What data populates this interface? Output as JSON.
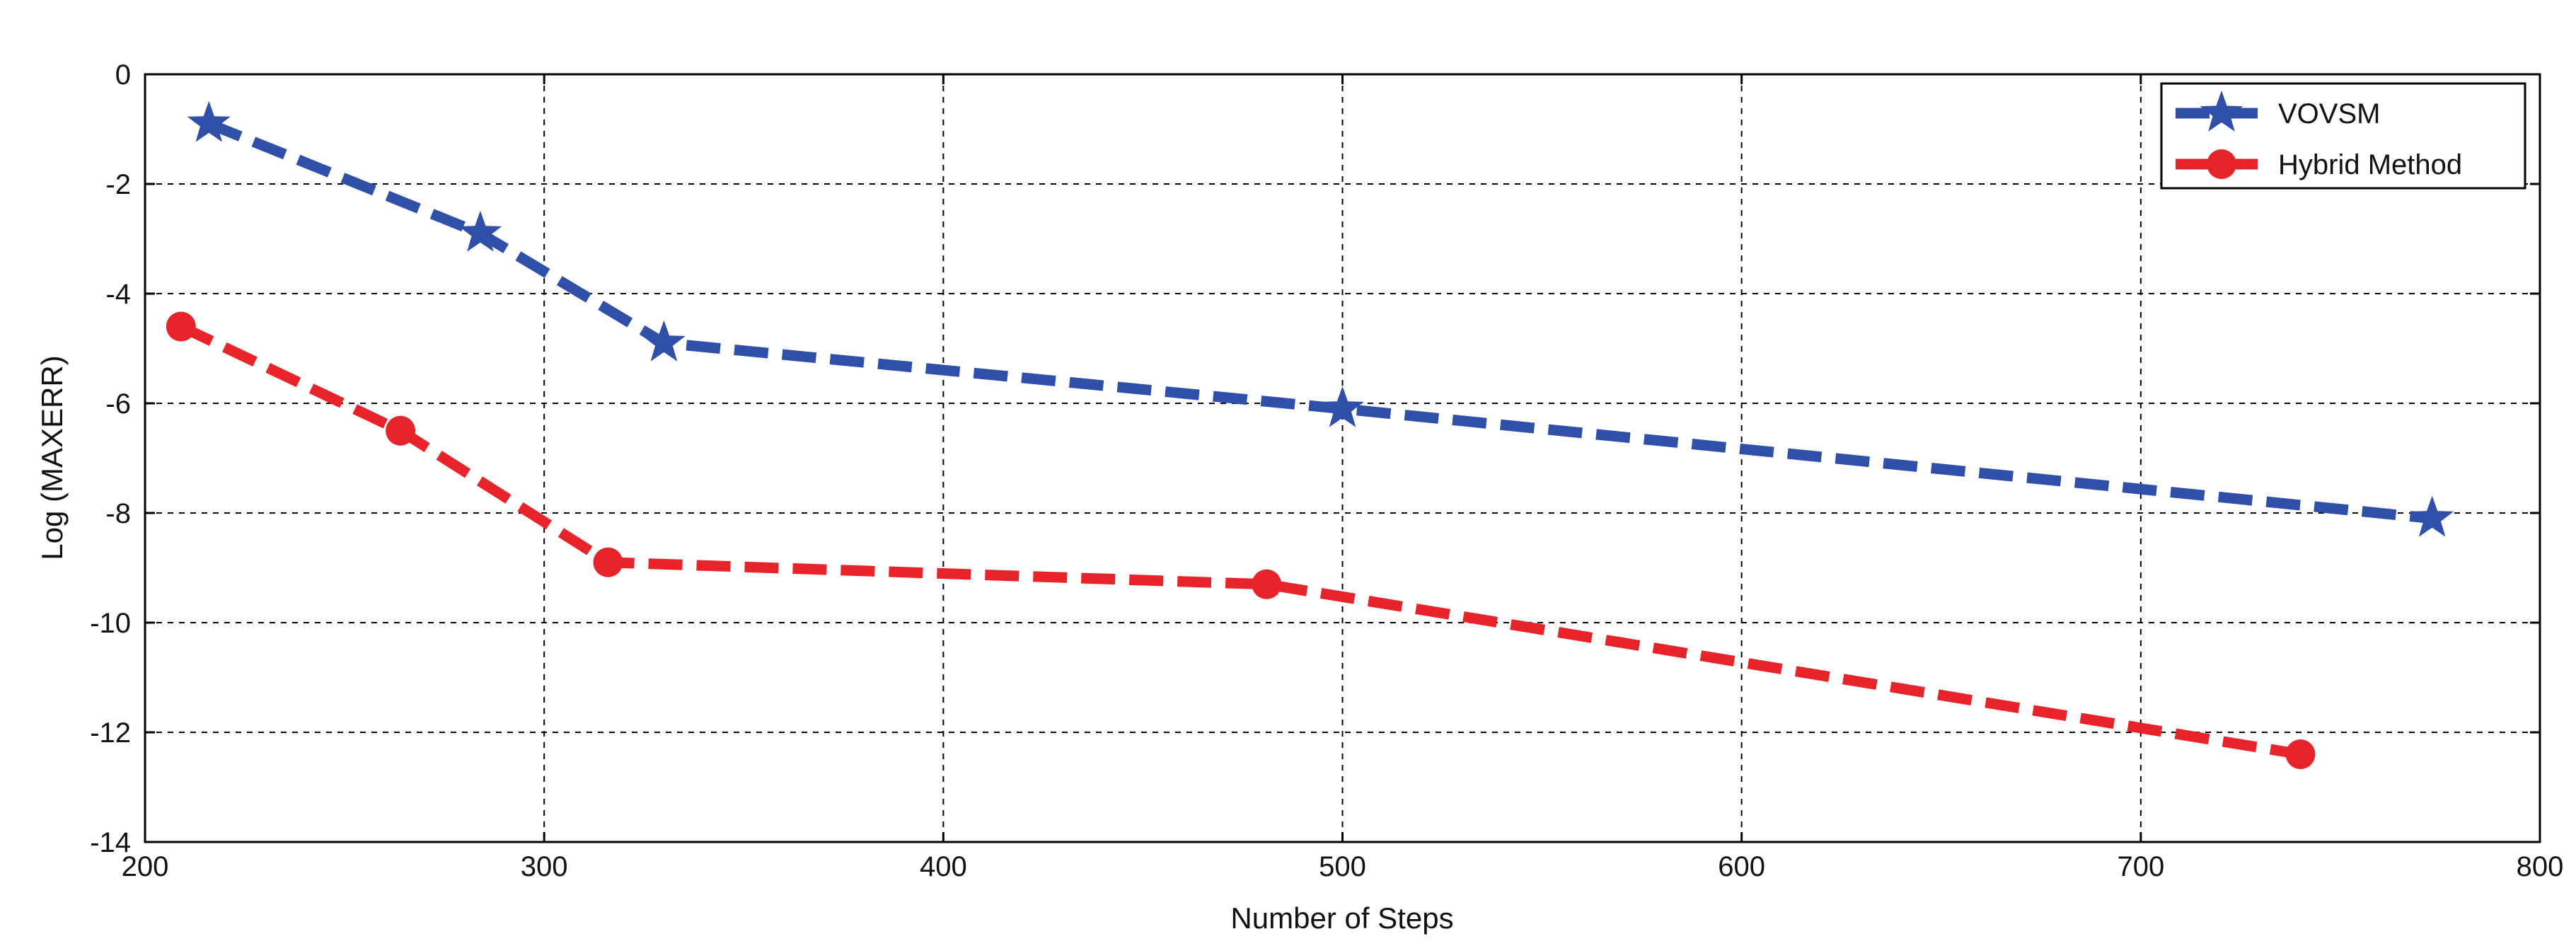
{
  "chart_data": {
    "type": "line",
    "title": "",
    "xlabel": "Number of Steps",
    "ylabel": "Log (MAXERR)",
    "xlim": [
      200,
      800
    ],
    "ylim": [
      -14,
      0
    ],
    "xticks": [
      "200",
      "300",
      "400",
      "500",
      "600",
      "700",
      "800"
    ],
    "yticks": [
      "0",
      "-2",
      "-4",
      "-6",
      "-8",
      "-10",
      "-12",
      "-14"
    ],
    "grid": true,
    "legend_position": "top-right",
    "series": [
      {
        "name": "VOVSM",
        "color": "#2f4fa8",
        "marker": "star",
        "line_style": "dashed",
        "x": [
          216,
          284,
          330,
          500,
          773
        ],
        "y": [
          -0.9,
          -2.9,
          -4.9,
          -6.1,
          -8.1
        ]
      },
      {
        "name": "Hybrid Method",
        "color": "#e8232a",
        "marker": "circle",
        "line_style": "dashed",
        "x": [
          209,
          264,
          316,
          481,
          740
        ],
        "y": [
          -4.6,
          -6.5,
          -8.9,
          -9.3,
          -12.4
        ]
      }
    ]
  }
}
